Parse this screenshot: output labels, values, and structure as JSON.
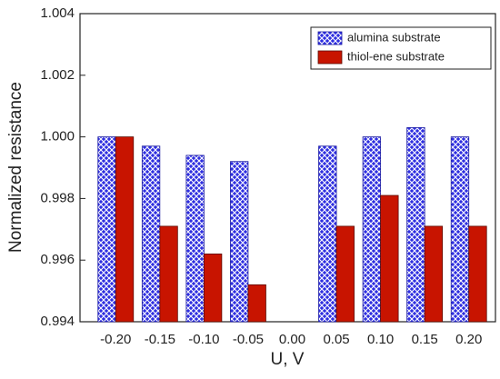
{
  "chart_data": {
    "type": "bar",
    "x_label": "U, V",
    "y_label": "Normalized resistance",
    "categories": [
      "-0.20",
      "-0.15",
      "-0.10",
      "-0.05",
      "0.00",
      "0.05",
      "0.10",
      "0.15",
      "0.20"
    ],
    "series": [
      {
        "name": "alumina substrate",
        "color": "#2f2fe0",
        "values": [
          1.0,
          0.9997,
          0.9994,
          0.9992,
          null,
          0.9997,
          1.0,
          1.0003,
          1.0
        ]
      },
      {
        "name": "thiol-ene substrate",
        "color": "#c81400",
        "values": [
          1.0,
          0.9971,
          0.9962,
          0.9952,
          null,
          0.9971,
          0.9981,
          0.9971,
          0.9971
        ]
      }
    ],
    "ylim": [
      0.994,
      1.004
    ],
    "yticks": [
      0.994,
      0.996,
      0.998,
      {
        "value": 1,
        "label": "1.000"
      },
      1.002,
      1.004
    ],
    "legend": "upper right",
    "grid": false
  }
}
